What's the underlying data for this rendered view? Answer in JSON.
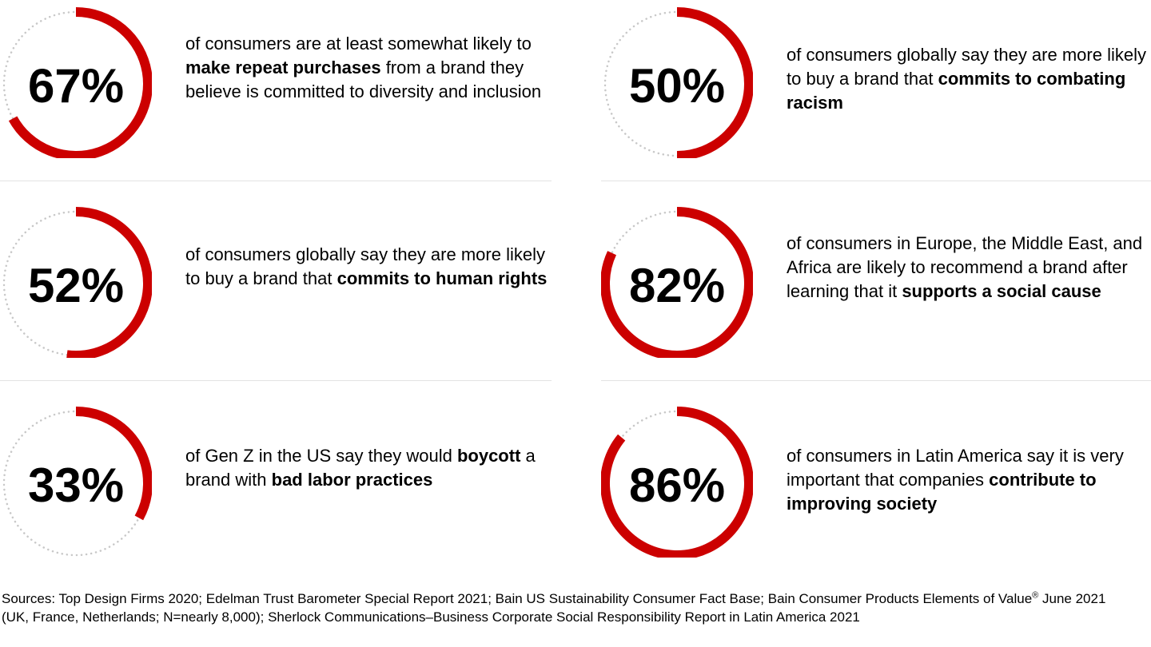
{
  "colors": {
    "accent": "#cc0000",
    "track": "#c8c8c8",
    "divider": "#e3e3e3"
  },
  "chart_data": {
    "type": "pie",
    "stats": [
      {
        "id": "repeat-purchases",
        "label": "67%",
        "value": 67,
        "text": {
          "pre": "of consumers are at least somewhat likely to ",
          "bold": "make repeat purchases",
          "post": " from a brand they believe is committed to diversity and inclusion"
        }
      },
      {
        "id": "combating-racism",
        "label": "50%",
        "value": 50,
        "text": {
          "pre": "of consumers globally say they are more likely to buy a brand that ",
          "bold": "commits to combating racism",
          "post": ""
        }
      },
      {
        "id": "human-rights",
        "label": "52%",
        "value": 52,
        "text": {
          "pre": "of consumers globally say they are more likely to buy a brand that ",
          "bold": "commits to human rights",
          "post": ""
        }
      },
      {
        "id": "social-cause",
        "label": "82%",
        "value": 82,
        "text": {
          "pre": "of consumers in Europe, the Middle East, and Africa are likely to recommend a brand after learning that it ",
          "bold": "supports a social cause",
          "post": ""
        }
      },
      {
        "id": "boycott",
        "label": "33%",
        "value": 33,
        "text": {
          "pre": "of Gen Z in the US say they would ",
          "bold": "boycott",
          "mid": " a brand with ",
          "bold2": "bad labor practices",
          "post": ""
        }
      },
      {
        "id": "improving-society",
        "label": "86%",
        "value": 86,
        "text": {
          "pre": "of consumers in Latin America say it is very important that companies ",
          "bold": "contribute to improving society",
          "post": ""
        }
      }
    ]
  },
  "sources": {
    "part1": "Sources: Top Design Firms 2020; Edelman Trust Barometer Special Report 2021; Bain US Sustainability Consumer Fact Base; Bain Consumer Products Elements of Value",
    "reg": "®",
    "part2": " June 2021 (UK, France, Netherlands; N=nearly 8,000); Sherlock Communications–Business Corporate Social Responsibility Report in Latin America 2021"
  }
}
